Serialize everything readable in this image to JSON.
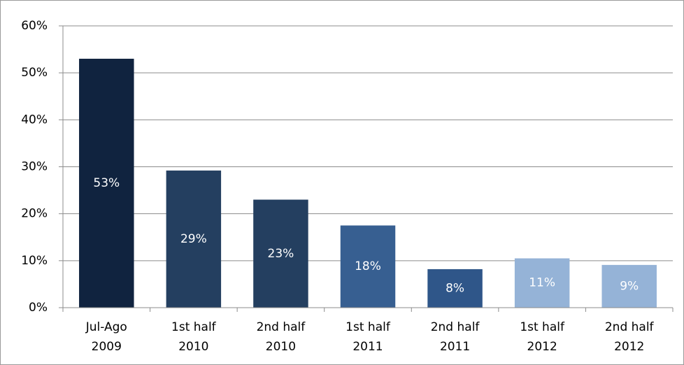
{
  "chart_data": {
    "type": "bar",
    "categories": [
      "Jul-Ago 2009",
      "1st half 2010",
      "2nd half 2010",
      "1st half 2011",
      "2nd half 2011",
      "1st half 2012",
      "2nd half 2012"
    ],
    "values": [
      53,
      29.2,
      23,
      17.5,
      8.2,
      10.5,
      9.1
    ],
    "value_labels": [
      "53%",
      "29%",
      "23%",
      "18%",
      "8%",
      "11%",
      "9%"
    ],
    "colors": [
      "#10233f",
      "#243f60",
      "#243f60",
      "#375f91",
      "#2f5689",
      "#95b3d7",
      "#95b3d7"
    ],
    "ylim": [
      0,
      60
    ],
    "yticks": [
      {
        "value": 0,
        "label": "0%"
      },
      {
        "value": 10,
        "label": "10%"
      },
      {
        "value": 20,
        "label": "20%"
      },
      {
        "value": 30,
        "label": "30%"
      },
      {
        "value": 40,
        "label": "40%"
      },
      {
        "value": 50,
        "label": "50%"
      },
      {
        "value": 60,
        "label": "60%"
      }
    ],
    "grid": true
  }
}
